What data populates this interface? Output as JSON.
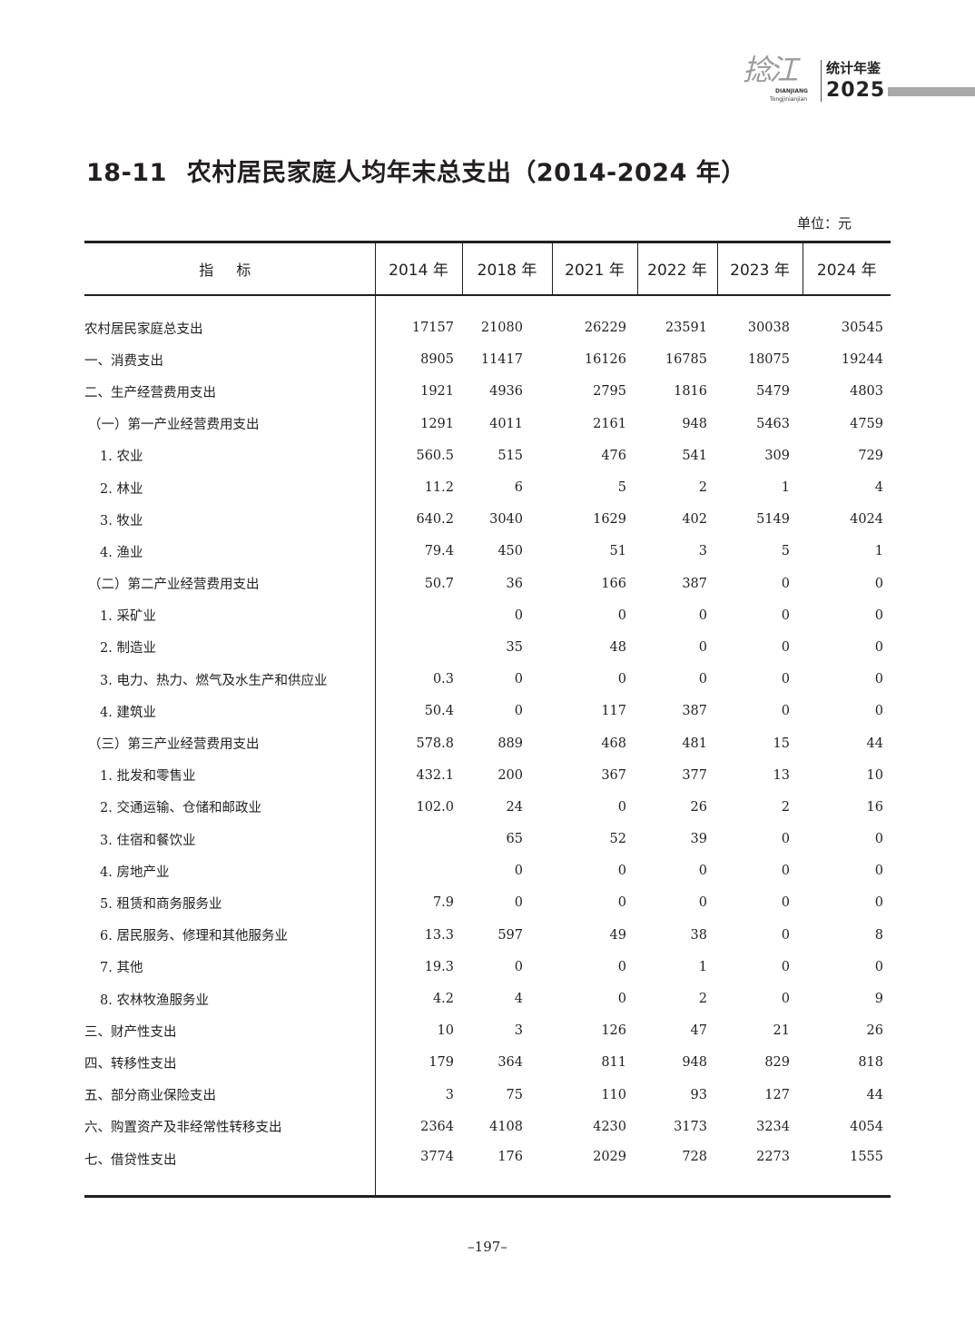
{
  "header": {
    "logo_script": "捻江",
    "logo_pinyin": "DIANJIANG",
    "logo_pinyin2": "Tongjinianjian",
    "logo_title": "统计年鉴",
    "logo_year": "2025",
    "bar_color": "#a8a8a8"
  },
  "title": {
    "number": "18-11",
    "text": "农村居民家庭人均年末总支出（2014-2024 年）"
  },
  "unit": "单位：元",
  "table": {
    "columns": [
      "指 标",
      "2014 年",
      "2018 年",
      "2021 年",
      "2022 年",
      "2023 年",
      "2024 年"
    ],
    "rows": [
      {
        "label": "农村居民家庭总支出",
        "indent": 0,
        "values": [
          "17157",
          "21080",
          "26229",
          "23591",
          "30038",
          "30545"
        ]
      },
      {
        "label": "一、消费支出",
        "indent": 0,
        "values": [
          "8905",
          "11417",
          "16126",
          "16785",
          "18075",
          "19244"
        ]
      },
      {
        "label": "二、生产经营费用支出",
        "indent": 0,
        "values": [
          "1921",
          "4936",
          "2795",
          "1816",
          "5479",
          "4803"
        ]
      },
      {
        "label": "（一）第一产业经营费用支出",
        "indent": 1,
        "values": [
          "1291",
          "4011",
          "2161",
          "948",
          "5463",
          "4759"
        ]
      },
      {
        "label": "1. 农业",
        "indent": 2,
        "values": [
          "560.5",
          "515",
          "476",
          "541",
          "309",
          "729"
        ]
      },
      {
        "label": "2. 林业",
        "indent": 2,
        "values": [
          "11.2",
          "6",
          "5",
          "2",
          "1",
          "4"
        ]
      },
      {
        "label": "3. 牧业",
        "indent": 2,
        "values": [
          "640.2",
          "3040",
          "1629",
          "402",
          "5149",
          "4024"
        ]
      },
      {
        "label": "4. 渔业",
        "indent": 2,
        "values": [
          "79.4",
          "450",
          "51",
          "3",
          "5",
          "1"
        ]
      },
      {
        "label": "（二）第二产业经营费用支出",
        "indent": 1,
        "values": [
          "50.7",
          "36",
          "166",
          "387",
          "0",
          "0"
        ]
      },
      {
        "label": "1. 采矿业",
        "indent": 2,
        "values": [
          "",
          "0",
          "0",
          "0",
          "0",
          "0"
        ]
      },
      {
        "label": "2. 制造业",
        "indent": 2,
        "values": [
          "",
          "35",
          "48",
          "0",
          "0",
          "0"
        ]
      },
      {
        "label": "3. 电力、热力、燃气及水生产和供应业",
        "indent": 2,
        "values": [
          "0.3",
          "0",
          "0",
          "0",
          "0",
          "0"
        ]
      },
      {
        "label": "4. 建筑业",
        "indent": 2,
        "values": [
          "50.4",
          "0",
          "117",
          "387",
          "0",
          "0"
        ]
      },
      {
        "label": "（三）第三产业经营费用支出",
        "indent": 1,
        "values": [
          "578.8",
          "889",
          "468",
          "481",
          "15",
          "44"
        ]
      },
      {
        "label": "1. 批发和零售业",
        "indent": 2,
        "values": [
          "432.1",
          "200",
          "367",
          "377",
          "13",
          "10"
        ]
      },
      {
        "label": "2. 交通运输、仓储和邮政业",
        "indent": 2,
        "values": [
          "102.0",
          "24",
          "0",
          "26",
          "2",
          "16"
        ]
      },
      {
        "label": "3. 住宿和餐饮业",
        "indent": 2,
        "values": [
          "",
          "65",
          "52",
          "39",
          "0",
          "0"
        ]
      },
      {
        "label": "4. 房地产业",
        "indent": 2,
        "values": [
          "",
          "0",
          "0",
          "0",
          "0",
          "0"
        ]
      },
      {
        "label": "5. 租赁和商务服务业",
        "indent": 2,
        "values": [
          "7.9",
          "0",
          "0",
          "0",
          "0",
          "0"
        ]
      },
      {
        "label": "6. 居民服务、修理和其他服务业",
        "indent": 2,
        "values": [
          "13.3",
          "597",
          "49",
          "38",
          "0",
          "8"
        ]
      },
      {
        "label": "7. 其他",
        "indent": 2,
        "values": [
          "19.3",
          "0",
          "0",
          "1",
          "0",
          "0"
        ]
      },
      {
        "label": "8. 农林牧渔服务业",
        "indent": 2,
        "values": [
          "4.2",
          "4",
          "0",
          "2",
          "0",
          "9"
        ]
      },
      {
        "label": "三、财产性支出",
        "indent": 0,
        "values": [
          "10",
          "3",
          "126",
          "47",
          "21",
          "26"
        ]
      },
      {
        "label": "四、转移性支出",
        "indent": 0,
        "values": [
          "179",
          "364",
          "811",
          "948",
          "829",
          "818"
        ]
      },
      {
        "label": "五、部分商业保险支出",
        "indent": 0,
        "values": [
          "3",
          "75",
          "110",
          "93",
          "127",
          "44"
        ]
      },
      {
        "label": "六、购置资产及非经常性转移支出",
        "indent": 0,
        "values": [
          "2364",
          "4108",
          "4230",
          "3173",
          "3234",
          "4054"
        ]
      },
      {
        "label": "七、借贷性支出",
        "indent": 0,
        "values": [
          "3774",
          "176",
          "2029",
          "728",
          "2273",
          "1555"
        ]
      }
    ]
  },
  "page_number": "–197–"
}
